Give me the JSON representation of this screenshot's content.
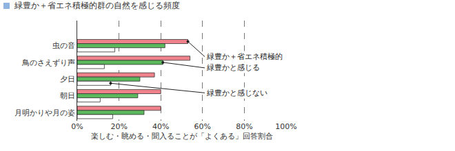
{
  "chart_data": {
    "type": "bar",
    "orientation": "horizontal",
    "title": "緑豊か＋省エネ積極的群の自然を感じる頻度",
    "x_label": "楽しむ・眺める・聞入ることが「よくある」回答割合",
    "categories": [
      "虫の音",
      "鳥のさえずり声",
      "夕日",
      "朝日",
      "月明かりや月の姿"
    ],
    "series": [
      {
        "name": "緑豊か＋省エネ積極的",
        "color": "#f0828c",
        "values": [
          53,
          54,
          37,
          40,
          40
        ]
      },
      {
        "name": "緑豊かと感じる",
        "color": "#5cb85c",
        "values": [
          42,
          41,
          30,
          29,
          32
        ]
      },
      {
        "name": "緑豊かと感じない",
        "color": "#ffffff",
        "values": [
          18,
          13,
          16,
          11,
          17
        ]
      }
    ],
    "xlim": [
      0,
      100
    ],
    "xticks": [
      {
        "value": 0,
        "label": "0%"
      },
      {
        "value": 20,
        "label": "20%"
      },
      {
        "value": 40,
        "label": "40%"
      },
      {
        "value": 60,
        "label": "60%"
      },
      {
        "value": 80,
        "label": "80%"
      },
      {
        "value": 100,
        "label": "100%"
      }
    ],
    "grid": true
  }
}
